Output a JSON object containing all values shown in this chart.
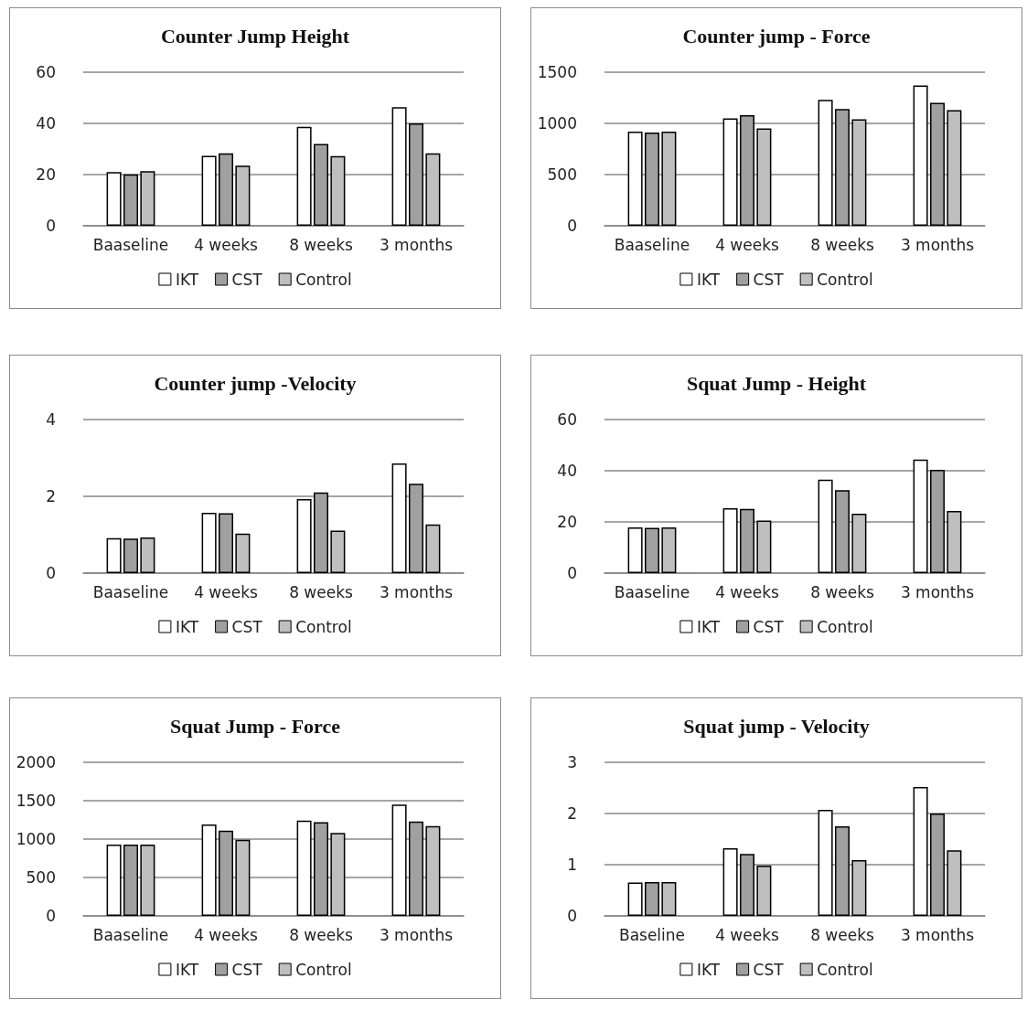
{
  "chart_data": [
    {
      "type": "bar",
      "title": "Counter Jump Height",
      "categories": [
        "Baaseline",
        "4 weeks",
        "8 weeks",
        "3 months"
      ],
      "ylim": [
        0,
        60
      ],
      "yticks": [
        0,
        20,
        40,
        60
      ],
      "grid": "y",
      "legend": "bottom",
      "series": [
        {
          "name": "IKT",
          "color": "#ffffff",
          "values": [
            21,
            27.3,
            38.7,
            46.3
          ]
        },
        {
          "name": "CST",
          "color": "#a0a0a0",
          "values": [
            20.1,
            28.3,
            32,
            40
          ]
        },
        {
          "name": "Control",
          "color": "#bfbfbf",
          "values": [
            21.3,
            23.5,
            27.2,
            28.3
          ]
        }
      ]
    },
    {
      "type": "bar",
      "title": "Counter jump - Force",
      "categories": [
        "Baaseline",
        "4 weeks",
        "8 weeks",
        "3 months"
      ],
      "ylim": [
        0,
        1500
      ],
      "yticks": [
        0,
        500,
        1000,
        1500
      ],
      "grid": "y",
      "legend": "bottom",
      "series": [
        {
          "name": "IKT",
          "color": "#ffffff",
          "values": [
            920,
            1050,
            1230,
            1370
          ]
        },
        {
          "name": "CST",
          "color": "#a0a0a0",
          "values": [
            910,
            1080,
            1140,
            1200
          ]
        },
        {
          "name": "Control",
          "color": "#bfbfbf",
          "values": [
            920,
            950,
            1040,
            1130
          ]
        }
      ]
    },
    {
      "type": "bar",
      "title": "Counter jump -Velocity",
      "categories": [
        "Baaseline",
        "4 weeks",
        "8 weeks",
        "3 months"
      ],
      "ylim": [
        0,
        4
      ],
      "yticks": [
        0,
        2,
        4
      ],
      "grid": "y",
      "legend": "bottom",
      "series": [
        {
          "name": "IKT",
          "color": "#ffffff",
          "values": [
            0.91,
            1.57,
            1.93,
            2.86
          ]
        },
        {
          "name": "CST",
          "color": "#a0a0a0",
          "values": [
            0.9,
            1.56,
            2.1,
            2.33
          ]
        },
        {
          "name": "Control",
          "color": "#bfbfbf",
          "values": [
            0.93,
            1.03,
            1.11,
            1.27
          ]
        }
      ]
    },
    {
      "type": "bar",
      "title": "Squat Jump - Height",
      "categories": [
        "Baaseline",
        "4 weeks",
        "8 weeks",
        "3 months"
      ],
      "ylim": [
        0,
        60
      ],
      "yticks": [
        0,
        20,
        40,
        60
      ],
      "grid": "y",
      "legend": "bottom",
      "series": [
        {
          "name": "IKT",
          "color": "#ffffff",
          "values": [
            17.9,
            25.4,
            36.5,
            44.4
          ]
        },
        {
          "name": "CST",
          "color": "#a0a0a0",
          "values": [
            17.7,
            25.1,
            32.4,
            40.4
          ]
        },
        {
          "name": "Control",
          "color": "#bfbfbf",
          "values": [
            17.9,
            20.5,
            23.2,
            24.3
          ]
        }
      ]
    },
    {
      "type": "bar",
      "title": "Squat Jump - Force",
      "categories": [
        "Baaseline",
        "4 weeks",
        "8 weeks",
        "3 months"
      ],
      "ylim": [
        0,
        2000
      ],
      "yticks": [
        0,
        500,
        1000,
        1500,
        2000
      ],
      "grid": "y",
      "legend": "bottom",
      "series": [
        {
          "name": "IKT",
          "color": "#ffffff",
          "values": [
            930,
            1190,
            1240,
            1450
          ]
        },
        {
          "name": "CST",
          "color": "#a0a0a0",
          "values": [
            930,
            1110,
            1220,
            1230
          ]
        },
        {
          "name": "Control",
          "color": "#bfbfbf",
          "values": [
            930,
            990,
            1080,
            1170
          ]
        }
      ]
    },
    {
      "type": "bar",
      "title": "Squat jump - Velocity",
      "categories": [
        "Baseline",
        "4 weeks",
        "8 weeks",
        "3 months"
      ],
      "ylim": [
        0,
        3
      ],
      "yticks": [
        0,
        1,
        2,
        3
      ],
      "grid": "y",
      "legend": "bottom",
      "series": [
        {
          "name": "IKT",
          "color": "#ffffff",
          "values": [
            0.65,
            1.32,
            2.07,
            2.52
          ]
        },
        {
          "name": "CST",
          "color": "#a0a0a0",
          "values": [
            0.66,
            1.21,
            1.75,
            2.0
          ]
        },
        {
          "name": "Control",
          "color": "#bfbfbf",
          "values": [
            0.66,
            0.98,
            1.09,
            1.28
          ]
        }
      ]
    }
  ]
}
